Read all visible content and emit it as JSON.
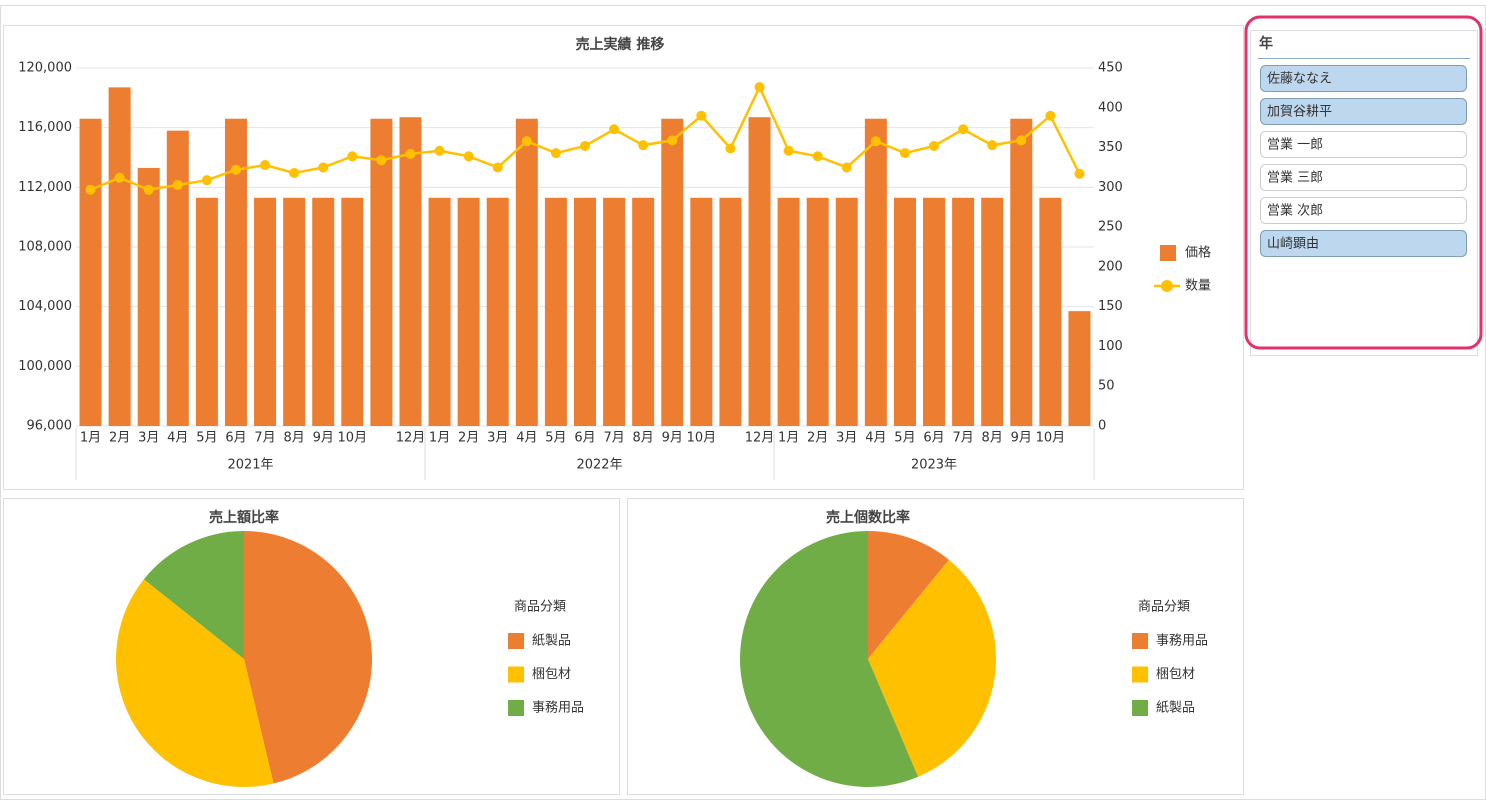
{
  "chart_data": [
    {
      "type": "combo",
      "title": "売上実績 推移",
      "categories": [
        "1月",
        "2月",
        "3月",
        "4月",
        "5月",
        "6月",
        "7月",
        "8月",
        "9月",
        "10月",
        null,
        "12月",
        "1月",
        "2月",
        "3月",
        "4月",
        "5月",
        "6月",
        "7月",
        "8月",
        "9月",
        "10月",
        null,
        "12月",
        "1月",
        "2月",
        "3月",
        "4月",
        "5月",
        "6月",
        "7月",
        "8月",
        "9月",
        "10月",
        null
      ],
      "groups": [
        "2021年",
        "2022年",
        "2023年"
      ],
      "series": [
        {
          "name": "価格",
          "type": "bar",
          "color": "#ED7D31",
          "axis": "y",
          "values": [
            116600,
            118700,
            113300,
            115800,
            111300,
            116600,
            111300,
            111300,
            111300,
            111300,
            116600,
            116700,
            111300,
            111300,
            111300,
            116600,
            111300,
            111300,
            111300,
            111300,
            116600,
            111300,
            111300,
            116700,
            111300,
            111300,
            111300,
            116600,
            111300,
            111300,
            111300,
            111300,
            116600,
            111300,
            103700
          ]
        },
        {
          "name": "数量",
          "type": "line",
          "color": "#FFC000",
          "axis": "y2",
          "values": [
            297,
            312,
            297,
            303,
            309,
            322,
            328,
            318,
            325,
            339,
            334,
            342,
            346,
            339,
            325,
            358,
            343,
            352,
            373,
            353,
            359,
            390,
            349,
            426,
            346,
            339,
            325,
            358,
            343,
            352,
            373,
            353,
            359,
            390,
            317
          ]
        }
      ],
      "ylim": [
        96000,
        120000
      ],
      "yticks": [
        {
          "value": 96000,
          "label": "96,000"
        },
        {
          "value": 100000,
          "label": "100,000"
        },
        {
          "value": 104000,
          "label": "104,000"
        },
        {
          "value": 108000,
          "label": "108,000"
        },
        {
          "value": 112000,
          "label": "112,000"
        },
        {
          "value": 116000,
          "label": "116,000"
        },
        {
          "value": 120000,
          "label": "120,000"
        }
      ],
      "y2lim": [
        0,
        450
      ],
      "y2ticks": [
        0,
        50,
        100,
        150,
        200,
        250,
        300,
        350,
        400,
        450
      ],
      "grid": true,
      "legend": "right"
    },
    {
      "type": "pie",
      "title": "売上額比率",
      "legend_title": "商品分類",
      "categories": [
        "紙製品",
        "梱包材",
        "事務用品"
      ],
      "values": [
        46.3,
        39.4,
        14.3
      ],
      "colors": [
        "#ED7D31",
        "#FFC000",
        "#70AD47"
      ]
    },
    {
      "type": "pie",
      "title": "売上個数比率",
      "legend_title": "商品分類",
      "categories": [
        "事務用品",
        "梱包材",
        "紙製品"
      ],
      "values": [
        10.9,
        32.7,
        56.4
      ],
      "colors": [
        "#ED7D31",
        "#FFC000",
        "#70AD47"
      ]
    }
  ],
  "slicer": {
    "title": "年",
    "items": [
      "佐藤ななえ",
      "加賀谷耕平",
      "営業 一郎",
      "営業 三郎",
      "営業 次郎",
      "山崎顕由"
    ],
    "selected": [
      true,
      true,
      false,
      false,
      false,
      true
    ]
  }
}
